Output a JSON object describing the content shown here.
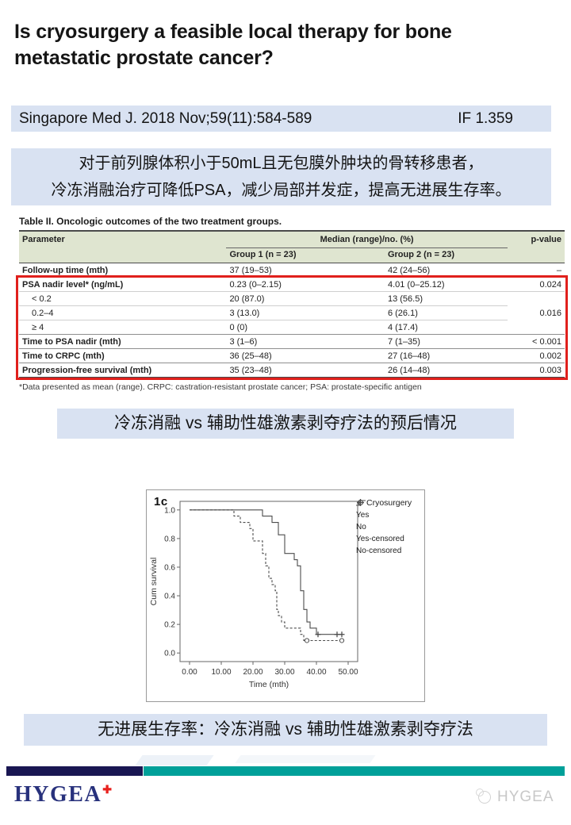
{
  "slide": {
    "title": "Is cryosurgery a feasible local therapy for bone metastatic prostate cancer?",
    "citation": "Singapore Med J. 2018 Nov;59(11):584-589",
    "impact_factor": "IF 1.359",
    "summary_line1": "对于前列腺体积小于50mL且无包膜外肿块的骨转移患者，",
    "summary_line2": "冷冻消融治疗可降低PSA，减少局部并发症，提高无进展生存率。",
    "caption_outcomes": "冷冻消融 vs 辅助性雄激素剥夺疗法的预后情况",
    "caption_survival": "无进展生存率：冷冻消融 vs 辅助性雄激素剥夺疗法"
  },
  "table": {
    "title": "Table II. Oncologic outcomes of the two treatment groups.",
    "col_param": "Parameter",
    "col_median": "Median (range)/no. (%)",
    "col_group1": "Group 1 (n = 23)",
    "col_group2": "Group 2 (n = 23)",
    "col_pvalue": "p-value",
    "rows": [
      {
        "param": "Follow-up time (mth)",
        "g1": "37 (19–53)",
        "g2": "42 (24–56)",
        "p": "–",
        "bold": true
      },
      {
        "param": "PSA nadir level* (ng/mL)",
        "g1": "0.23 (0–2.15)",
        "g2": "4.01 (0–25.12)",
        "p": "0.024",
        "bold": true,
        "highlight_start": true
      },
      {
        "param": "< 0.2",
        "g1": "20 (87.0)",
        "g2": "13 (56.5)",
        "p": "0.016",
        "indent": true,
        "p_rowspan": 3
      },
      {
        "param": "0.2–4",
        "g1": "3 (13.0)",
        "g2": "6 (26.1)",
        "indent": true,
        "p_skip": true
      },
      {
        "param": "≥ 4",
        "g1": "0 (0)",
        "g2": "4 (17.4)",
        "indent": true,
        "p_skip": true
      },
      {
        "param": "Time to PSA nadir (mth)",
        "g1": "3 (1–6)",
        "g2": "7 (1–35)",
        "p": "< 0.001",
        "bold": true
      },
      {
        "param": "Time to CRPC (mth)",
        "g1": "36 (25–48)",
        "g2": "27 (16–48)",
        "p": "0.002",
        "bold": true
      },
      {
        "param": "Progression-free survival (mth)",
        "g1": "35 (23–48)",
        "g2": "26 (14–48)",
        "p": "0.003",
        "bold": true,
        "highlight_end": true
      }
    ],
    "footnote": "*Data presented as mean (range). CRPC: castration-resistant prostate cancer; PSA: prostate-specific antigen",
    "highlight_color": "#e0201c"
  },
  "chart_data": {
    "type": "line",
    "subtype": "kaplan-meier-step",
    "figure_label": "1c",
    "xlabel": "Time (mth)",
    "ylabel": "Cum survival",
    "xlim": [
      -3,
      53
    ],
    "ylim": [
      -0.06,
      1.06
    ],
    "xticks": [
      "0.00",
      "10.00",
      "20.00",
      "30.00",
      "40.00",
      "50.00"
    ],
    "xtick_values": [
      0,
      10,
      20,
      30,
      40,
      50
    ],
    "yticks": [
      "0.0",
      "0.2",
      "0.4",
      "0.6",
      "0.8",
      "1.0"
    ],
    "ytick_values": [
      0,
      0.2,
      0.4,
      0.6,
      0.8,
      1.0
    ],
    "legend_title": "Cryosurgery",
    "legend": [
      "Yes",
      "No",
      "Yes-censored",
      "No-censored"
    ],
    "line_color": "#4d4d4d",
    "series": [
      {
        "name": "Yes",
        "style": "solid",
        "start": [
          0,
          1.0
        ],
        "end_x": 48,
        "drops": [
          [
            23,
            0.957
          ],
          [
            26,
            0.913
          ],
          [
            28,
            0.826
          ],
          [
            30,
            0.696
          ],
          [
            33,
            0.652
          ],
          [
            34,
            0.609
          ],
          [
            35,
            0.435
          ],
          [
            36,
            0.304
          ],
          [
            37,
            0.217
          ],
          [
            38,
            0.174
          ],
          [
            40,
            0.13
          ]
        ]
      },
      {
        "name": "No",
        "style": "dashed",
        "start": [
          0,
          1.0
        ],
        "end_x": 48,
        "drops": [
          [
            14,
            0.957
          ],
          [
            16,
            0.913
          ],
          [
            19,
            0.87
          ],
          [
            20,
            0.783
          ],
          [
            23,
            0.696
          ],
          [
            24,
            0.609
          ],
          [
            25,
            0.522
          ],
          [
            26,
            0.478
          ],
          [
            27,
            0.435
          ],
          [
            27.5,
            0.304
          ],
          [
            28,
            0.261
          ],
          [
            29,
            0.217
          ],
          [
            30,
            0.174
          ],
          [
            35,
            0.13
          ],
          [
            36,
            0.087
          ]
        ]
      }
    ],
    "censored": [
      {
        "name": "Yes-censored",
        "marker": "plus",
        "points": [
          [
            40.5,
            0.13
          ],
          [
            46.5,
            0.13
          ],
          [
            48,
            0.13
          ]
        ]
      },
      {
        "name": "No-censored",
        "marker": "circle",
        "points": [
          [
            37,
            0.087
          ],
          [
            48,
            0.087
          ]
        ]
      }
    ]
  },
  "footer": {
    "logo_text": "HYGEA",
    "logo_plus": "✚",
    "watermark_text": "HYGEA",
    "navy": "#191652",
    "teal": "#00a099"
  }
}
